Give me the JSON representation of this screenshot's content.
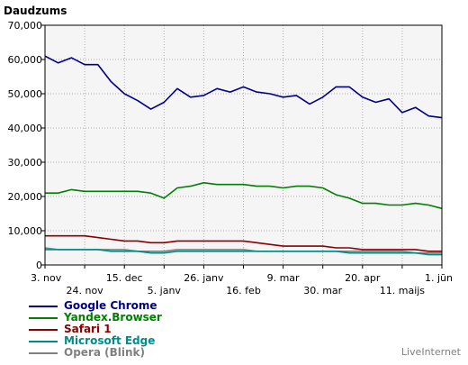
{
  "watermark": "LiveInternet",
  "chart_data": {
    "type": "line",
    "ylabel": "Daudzums",
    "ylim": [
      0,
      70000
    ],
    "yticks": [
      "0",
      "10,000",
      "20,000",
      "30,000",
      "40,000",
      "50,000",
      "60,000",
      "70,000"
    ],
    "xticks": [
      {
        "i": 0,
        "label": "3. nov"
      },
      {
        "i": 3,
        "label": "24. nov"
      },
      {
        "i": 6,
        "label": "15. dec"
      },
      {
        "i": 9,
        "label": "5. janv"
      },
      {
        "i": 12,
        "label": "26. janv"
      },
      {
        "i": 15,
        "label": "16. feb"
      },
      {
        "i": 18,
        "label": "9. mar"
      },
      {
        "i": 21,
        "label": "30. mar"
      },
      {
        "i": 24,
        "label": "20. apr"
      },
      {
        "i": 27,
        "label": "11. maijs"
      },
      {
        "i": 30,
        "label": "1. jūn"
      }
    ],
    "grid": true,
    "legend": "bottom-left",
    "series": [
      {
        "name": "Google Chrome",
        "color": "#00008b",
        "values": [
          61000,
          59000,
          60500,
          58500,
          58500,
          53500,
          50000,
          48000,
          45500,
          47500,
          51500,
          49000,
          49500,
          51500,
          50500,
          52000,
          50500,
          50000,
          49000,
          49500,
          47000,
          49000,
          52000,
          52000,
          49000,
          47500,
          48500,
          44500,
          46000,
          43500,
          43000
        ]
      },
      {
        "name": "Yandex.Browser",
        "color": "#008000",
        "values": [
          21000,
          21000,
          22000,
          21500,
          21500,
          21500,
          21500,
          21500,
          21000,
          19500,
          22500,
          23000,
          24000,
          23500,
          23500,
          23500,
          23000,
          23000,
          22500,
          23000,
          23000,
          22500,
          20500,
          19500,
          18000,
          18000,
          17500,
          17500,
          18000,
          17500,
          16500
        ]
      },
      {
        "name": "Safari 1",
        "color": "#8b0000",
        "values": [
          8500,
          8500,
          8500,
          8500,
          8000,
          7500,
          7000,
          7000,
          6500,
          6500,
          7000,
          7000,
          7000,
          7000,
          7000,
          7000,
          6500,
          6000,
          5500,
          5500,
          5500,
          5500,
          5000,
          5000,
          4500,
          4500,
          4500,
          4500,
          4500,
          4000,
          4000
        ]
      },
      {
        "name": "Microsoft Edge",
        "color": "#008b8b",
        "values": [
          4500,
          4500,
          4500,
          4500,
          4500,
          4000,
          4000,
          4000,
          3500,
          3500,
          4000,
          4000,
          4000,
          4000,
          4000,
          4000,
          4000,
          4000,
          4000,
          4000,
          4000,
          4000,
          4000,
          3500,
          3500,
          3500,
          3500,
          3500,
          3500,
          3000,
          3000
        ]
      },
      {
        "name": "Opera (Blink)",
        "color": "#808080",
        "values": [
          5000,
          4500,
          4500,
          4500,
          4500,
          4500,
          4500,
          4000,
          4000,
          4000,
          4500,
          4500,
          4500,
          4500,
          4500,
          4500,
          4000,
          4000,
          4000,
          4000,
          4000,
          4000,
          4000,
          4000,
          4000,
          4000,
          4000,
          4000,
          3500,
          3500,
          3500
        ]
      }
    ]
  }
}
